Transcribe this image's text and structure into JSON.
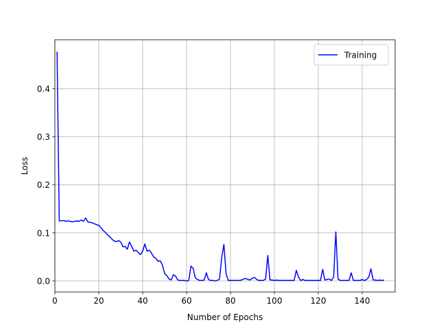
{
  "chart_data": {
    "type": "line",
    "xlabel": "Number of Epochs",
    "ylabel": "Loss",
    "x": [
      1,
      2,
      3,
      4,
      5,
      6,
      7,
      8,
      9,
      10,
      11,
      12,
      13,
      14,
      15,
      16,
      17,
      18,
      19,
      20,
      21,
      22,
      23,
      24,
      25,
      26,
      27,
      28,
      29,
      30,
      31,
      32,
      33,
      34,
      35,
      36,
      37,
      38,
      39,
      40,
      41,
      42,
      43,
      44,
      45,
      46,
      47,
      48,
      49,
      50,
      51,
      52,
      53,
      54,
      55,
      56,
      57,
      58,
      59,
      60,
      61,
      62,
      63,
      64,
      65,
      66,
      67,
      68,
      69,
      70,
      71,
      72,
      73,
      74,
      75,
      76,
      77,
      78,
      79,
      80,
      81,
      82,
      83,
      84,
      85,
      86,
      87,
      88,
      89,
      90,
      91,
      92,
      93,
      94,
      95,
      96,
      97,
      98,
      99,
      100,
      101,
      102,
      103,
      104,
      105,
      106,
      107,
      108,
      109,
      110,
      111,
      112,
      113,
      114,
      115,
      116,
      117,
      118,
      119,
      120,
      121,
      122,
      123,
      124,
      125,
      126,
      127,
      128,
      129,
      130,
      131,
      132,
      133,
      134,
      135,
      136,
      137,
      138,
      139,
      140,
      141,
      142,
      143,
      144,
      145,
      146,
      147,
      148,
      149,
      150
    ],
    "series": [
      {
        "name": "Training",
        "color": "#0000ff",
        "values": [
          0.477,
          0.125,
          0.125,
          0.126,
          0.124,
          0.125,
          0.124,
          0.123,
          0.124,
          0.125,
          0.124,
          0.127,
          0.124,
          0.131,
          0.123,
          0.122,
          0.121,
          0.119,
          0.117,
          0.116,
          0.111,
          0.105,
          0.101,
          0.096,
          0.092,
          0.087,
          0.083,
          0.082,
          0.084,
          0.081,
          0.071,
          0.072,
          0.066,
          0.081,
          0.072,
          0.062,
          0.064,
          0.059,
          0.055,
          0.062,
          0.077,
          0.062,
          0.064,
          0.058,
          0.05,
          0.047,
          0.041,
          0.042,
          0.033,
          0.015,
          0.011,
          0.004,
          0.002,
          0.013,
          0.01,
          0.002,
          0.001,
          0.001,
          0.001,
          0.0,
          0.001,
          0.031,
          0.026,
          0.006,
          0.003,
          0.001,
          0.001,
          0.002,
          0.017,
          0.003,
          0.001,
          0.001,
          0.0,
          0.001,
          0.004,
          0.048,
          0.076,
          0.015,
          0.001,
          0.001,
          0.001,
          0.001,
          0.001,
          0.001,
          0.002,
          0.004,
          0.005,
          0.003,
          0.002,
          0.006,
          0.007,
          0.003,
          0.001,
          0.001,
          0.001,
          0.004,
          0.053,
          0.002,
          0.002,
          0.001,
          0.002,
          0.001,
          0.001,
          0.001,
          0.001,
          0.001,
          0.001,
          0.001,
          0.001,
          0.022,
          0.008,
          0.001,
          0.003,
          0.001,
          0.001,
          0.001,
          0.001,
          0.001,
          0.001,
          0.001,
          0.001,
          0.024,
          0.002,
          0.003,
          0.004,
          0.001,
          0.008,
          0.102,
          0.004,
          0.001,
          0.001,
          0.001,
          0.001,
          0.001,
          0.017,
          0.001,
          0.001,
          0.001,
          0.001,
          0.003,
          0.001,
          0.003,
          0.008,
          0.025,
          0.002,
          0.002,
          0.001,
          0.002,
          0.001,
          0.002
        ]
      }
    ],
    "xlim": [
      0,
      155
    ],
    "xticks": [
      0,
      20,
      40,
      60,
      80,
      100,
      120,
      140
    ],
    "ylim": [
      -0.023,
      0.502
    ],
    "yticks": [
      {
        "value": 0,
        "label": "0.0"
      },
      0.1,
      0.2,
      0.3,
      0.4
    ],
    "grid": true,
    "legend": "upper-right"
  }
}
